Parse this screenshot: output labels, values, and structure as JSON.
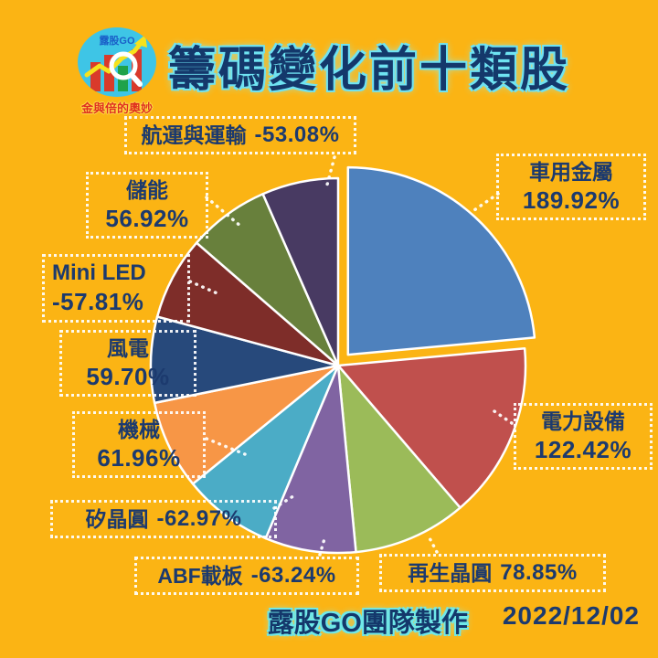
{
  "title": "籌碼變化前十類股",
  "logo": {
    "brand": "露股GO",
    "tagline": "金與倍的奧妙"
  },
  "footer": {
    "credit": "露股GO團隊製作",
    "date": "2022/12/02"
  },
  "colors": {
    "background": "#FBB414",
    "text_navy": "#1C3A6E",
    "title_glow": "#6FE3F2",
    "box_border": "#FFFFFF"
  },
  "chart_data": {
    "type": "pie",
    "title": "籌碼變化前十類股",
    "note": "slice size proportional to absolute value; first slice exploded; drawn clockwise from 12 o'clock",
    "start_angle_deg": 0,
    "legend_position": "around",
    "slices": [
      {
        "key": "car-metal",
        "label": "車用金屬",
        "value": 189.92,
        "display": "189.92%",
        "color": "#4E81BD",
        "exploded": true
      },
      {
        "key": "power-equipment",
        "label": "電力設備",
        "value": 122.42,
        "display": "122.42%",
        "color": "#C0504D",
        "exploded": false
      },
      {
        "key": "regen-wafer",
        "label": "再生晶圓",
        "value": 78.85,
        "display": "78.85%",
        "color": "#9BBB59",
        "exploded": false
      },
      {
        "key": "abf-substrate",
        "label": "ABF載板",
        "value": -63.24,
        "display": "-63.24%",
        "color": "#8064A2",
        "exploded": false
      },
      {
        "key": "silicon-wafer",
        "label": "矽晶圓",
        "value": -62.97,
        "display": "-62.97%",
        "color": "#4BACC6",
        "exploded": false
      },
      {
        "key": "machinery",
        "label": "機械",
        "value": 61.96,
        "display": "61.96%",
        "color": "#F79646",
        "exploded": false
      },
      {
        "key": "wind-power",
        "label": "風電",
        "value": 59.7,
        "display": "59.70%",
        "color": "#27497B",
        "exploded": false
      },
      {
        "key": "mini-led",
        "label": "Mini LED",
        "value": -57.81,
        "display": "-57.81%",
        "color": "#7E2D29",
        "exploded": false
      },
      {
        "key": "energy-storage",
        "label": "儲能",
        "value": 56.92,
        "display": "56.92%",
        "color": "#68803C",
        "exploded": false
      },
      {
        "key": "shipping-transport",
        "label": "航運與運輸",
        "value": -53.08,
        "display": "-53.08%",
        "color": "#483A62",
        "exploded": false
      }
    ]
  }
}
